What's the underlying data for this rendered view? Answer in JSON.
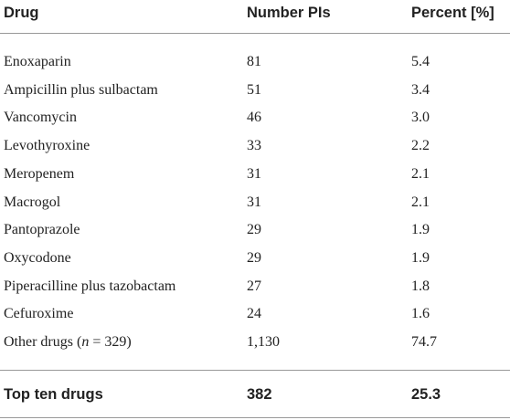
{
  "table": {
    "header": [
      "Drug",
      "Number PIs",
      "Percent [%]"
    ],
    "rows": [
      [
        "Enoxaparin",
        "81",
        "5.4"
      ],
      [
        "Ampicillin plus sulbactam",
        "51",
        "3.4"
      ],
      [
        "Vancomycin",
        "46",
        "3.0"
      ],
      [
        "Levothyroxine",
        "33",
        "2.2"
      ],
      [
        "Meropenem",
        "31",
        "2.1"
      ],
      [
        "Macrogol",
        "31",
        "2.1"
      ],
      [
        "Pantoprazole",
        "29",
        "1.9"
      ],
      [
        "Oxycodone",
        "29",
        "1.9"
      ],
      [
        "Piperacilline plus tazobactam",
        "27",
        "1.8"
      ],
      [
        "Cefuroxime",
        "24",
        "1.6"
      ]
    ],
    "other_row": {
      "drug": [
        "Other drugs (",
        "n",
        " = 329)"
      ],
      "number": "1,130",
      "percent": "74.7"
    },
    "total_row": [
      "Top ten drugs",
      "382",
      "25.3"
    ]
  }
}
